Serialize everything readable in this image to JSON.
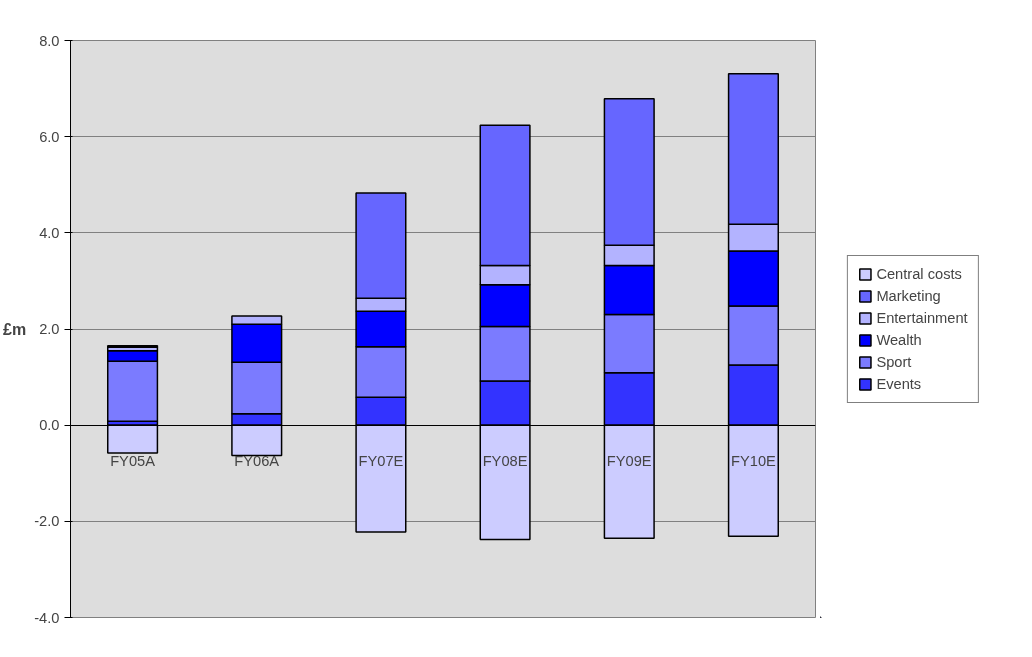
{
  "chart_data": {
    "type": "bar",
    "stacked": true,
    "ylabel": "£m",
    "categories": [
      "FY05A",
      "FY06A",
      "FY07E",
      "FY08E",
      "FY09E",
      "FY10E"
    ],
    "series": [
      {
        "name": "Events",
        "color": "#3333ff",
        "values": [
          0.08,
          0.24,
          0.58,
          0.92,
          1.09,
          1.25
        ]
      },
      {
        "name": "Sport",
        "color": "#7b7bff",
        "values": [
          1.25,
          1.07,
          1.05,
          1.13,
          1.21,
          1.23
        ]
      },
      {
        "name": "Wealth",
        "color": "#0000ff",
        "values": [
          0.22,
          0.79,
          0.74,
          0.87,
          1.02,
          1.14
        ]
      },
      {
        "name": "Entertainment",
        "color": "#b3b3ff",
        "values": [
          0.07,
          0.17,
          0.27,
          0.4,
          0.42,
          0.56
        ]
      },
      {
        "name": "Marketing",
        "color": "#6666ff",
        "values": [
          0.03,
          null,
          2.19,
          2.92,
          3.05,
          3.13
        ]
      },
      {
        "name": "Central costs",
        "color": "#ccccff",
        "values": [
          -0.58,
          -0.63,
          -2.22,
          -2.38,
          -2.35,
          -2.31
        ]
      }
    ],
    "ylim": [
      -4,
      8
    ],
    "yticks": [
      {
        "value": -4,
        "label": "-4.0"
      },
      {
        "value": -2,
        "label": "-2.0"
      },
      {
        "value": 0,
        "label": "0.0"
      },
      {
        "value": 2,
        "label": "2.0"
      },
      {
        "value": 4,
        "label": "4.0"
      },
      {
        "value": 6,
        "label": "6.0"
      },
      {
        "value": 8,
        "label": "8.0"
      }
    ],
    "grid": "y",
    "legend": "right"
  }
}
